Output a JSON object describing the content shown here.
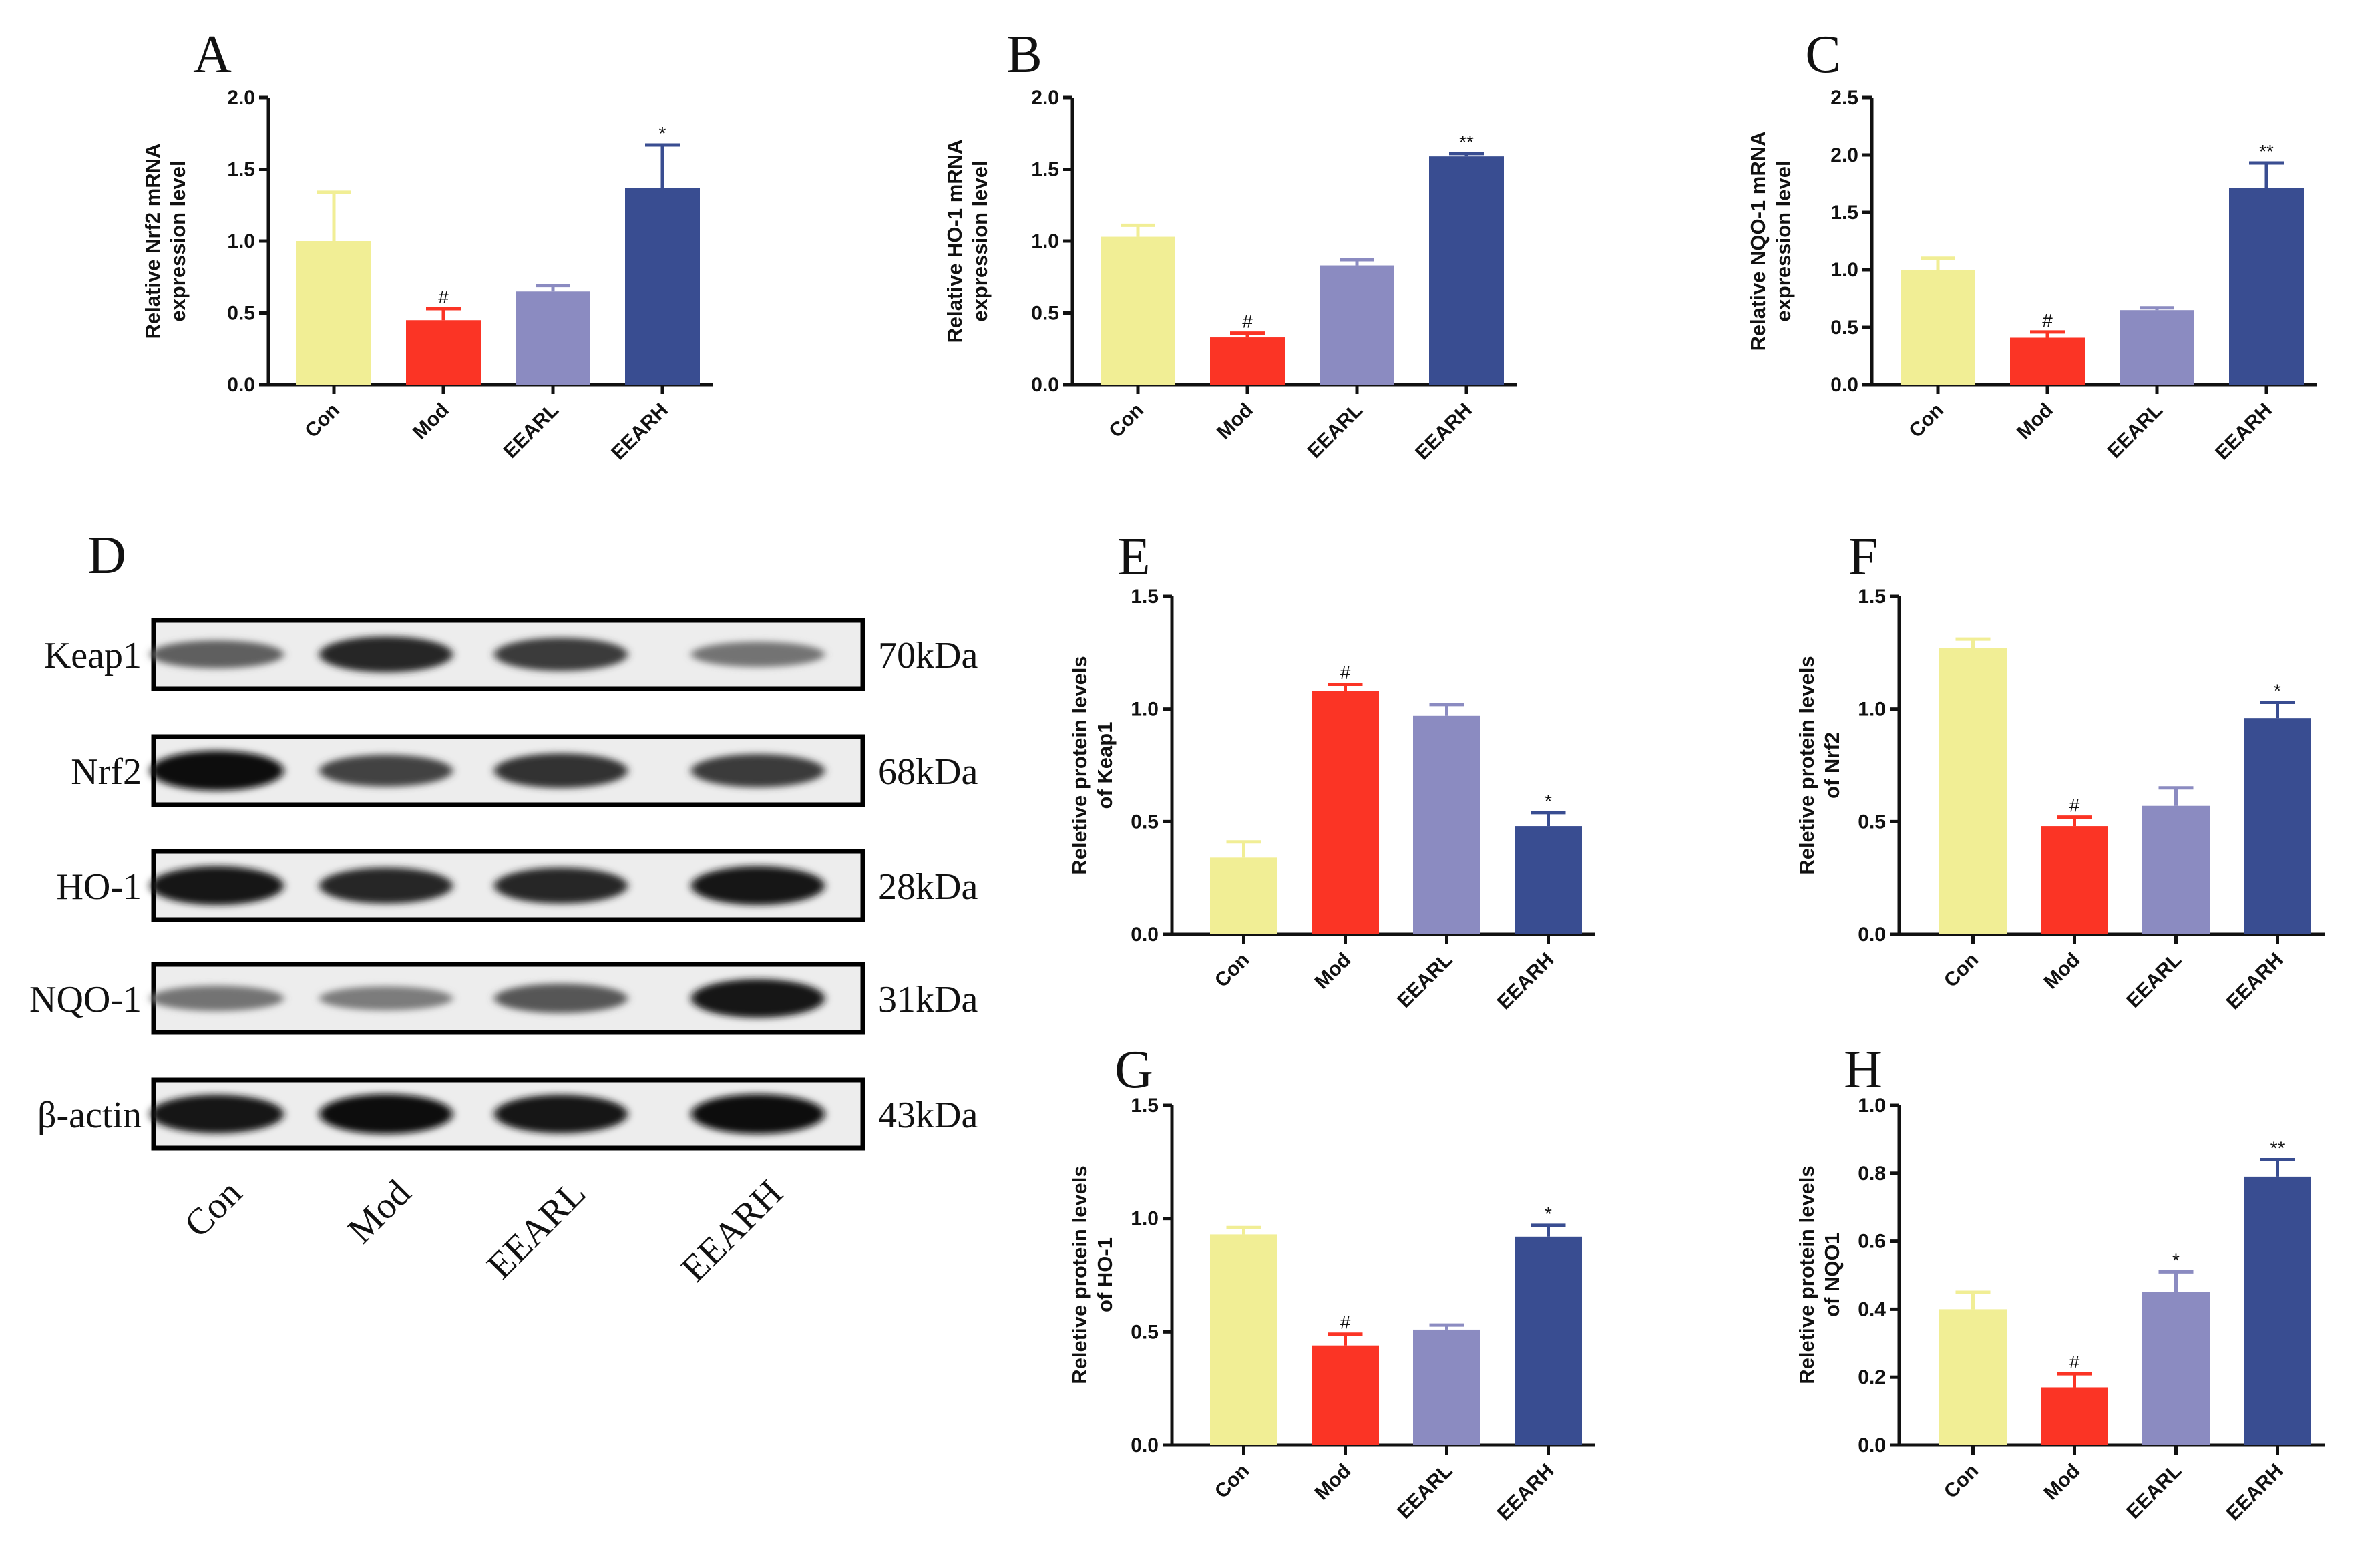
{
  "colors": [
    "#f1ee95",
    "#fb3425",
    "#8b8bc1",
    "#394d91"
  ],
  "chart_data": [
    {
      "panel": "A",
      "type": "bar",
      "categories": [
        "Con",
        "Mod",
        "EEARL",
        "EEARH"
      ],
      "values": [
        1.0,
        0.45,
        0.65,
        1.37
      ],
      "errors": [
        0.34,
        0.08,
        0.04,
        0.3
      ],
      "sig": [
        "",
        "#",
        "",
        "*"
      ],
      "ylabel": [
        "Relative Nrf2 mRNA",
        "expression level"
      ],
      "ylim": [
        0,
        2.0
      ],
      "yticks": [
        "0.0",
        "0.5",
        "1.0",
        "1.5",
        "2.0"
      ]
    },
    {
      "panel": "B",
      "type": "bar",
      "categories": [
        "Con",
        "Mod",
        "EEARL",
        "EEARH"
      ],
      "values": [
        1.03,
        0.33,
        0.83,
        1.59
      ],
      "errors": [
        0.08,
        0.03,
        0.04,
        0.02
      ],
      "sig": [
        "",
        "#",
        "",
        "**"
      ],
      "ylabel": [
        "Relative HO-1 mRNA",
        "expression level"
      ],
      "ylim": [
        0,
        2.0
      ],
      "yticks": [
        "0.0",
        "0.5",
        "1.0",
        "1.5",
        "2.0"
      ]
    },
    {
      "panel": "C",
      "type": "bar",
      "categories": [
        "Con",
        "Mod",
        "EEARL",
        "EEARH"
      ],
      "values": [
        1.0,
        0.41,
        0.65,
        1.71
      ],
      "errors": [
        0.1,
        0.05,
        0.02,
        0.22
      ],
      "sig": [
        "",
        "#",
        "",
        "**"
      ],
      "ylabel": [
        "Relative NQO-1 mRNA",
        "expression level"
      ],
      "ylim": [
        0,
        2.5
      ],
      "yticks": [
        "0.0",
        "0.5",
        "1.0",
        "1.5",
        "2.0",
        "2.5"
      ]
    },
    {
      "panel": "E",
      "type": "bar",
      "categories": [
        "Con",
        "Mod",
        "EEARL",
        "EEARH"
      ],
      "values": [
        0.34,
        1.08,
        0.97,
        0.48
      ],
      "errors": [
        0.07,
        0.03,
        0.05,
        0.06
      ],
      "sig": [
        "",
        "#",
        "",
        "*"
      ],
      "ylabel": [
        "Reletive protein levels",
        "of Keap1"
      ],
      "ylim": [
        0,
        1.5
      ],
      "yticks": [
        "0.0",
        "0.5",
        "1.0",
        "1.5"
      ]
    },
    {
      "panel": "F",
      "type": "bar",
      "categories": [
        "Con",
        "Mod",
        "EEARL",
        "EEARH"
      ],
      "values": [
        1.27,
        0.48,
        0.57,
        0.96
      ],
      "errors": [
        0.04,
        0.04,
        0.08,
        0.07
      ],
      "sig": [
        "",
        "#",
        "",
        "*"
      ],
      "ylabel": [
        "Reletive protein levels",
        "of Nrf2"
      ],
      "ylim": [
        0,
        1.5
      ],
      "yticks": [
        "0.0",
        "0.5",
        "1.0",
        "1.5"
      ]
    },
    {
      "panel": "G",
      "type": "bar",
      "categories": [
        "Con",
        "Mod",
        "EEARL",
        "EEARH"
      ],
      "values": [
        0.93,
        0.44,
        0.51,
        0.92
      ],
      "errors": [
        0.03,
        0.05,
        0.02,
        0.05
      ],
      "sig": [
        "",
        "#",
        "",
        "*"
      ],
      "ylabel": [
        "Reletive protein levels",
        "of HO-1"
      ],
      "ylim": [
        0,
        1.5
      ],
      "yticks": [
        "0.0",
        "0.5",
        "1.0",
        "1.5"
      ]
    },
    {
      "panel": "H",
      "type": "bar",
      "categories": [
        "Con",
        "Mod",
        "EEARL",
        "EEARH"
      ],
      "values": [
        0.4,
        0.17,
        0.45,
        0.79
      ],
      "errors": [
        0.05,
        0.04,
        0.06,
        0.05
      ],
      "sig": [
        "",
        "#",
        "*",
        "**"
      ],
      "ylabel": [
        "Reletive protein levels",
        "of NQO1"
      ],
      "ylim": [
        0,
        1.0
      ],
      "yticks": [
        "0.0",
        "0.2",
        "0.4",
        "0.6",
        "0.8",
        "1.0"
      ]
    }
  ],
  "western_blot": {
    "panel": "D",
    "proteins": [
      "Keap1",
      "Nrf2",
      "HO-1",
      "NQO-1",
      "β-actin"
    ],
    "weights": [
      "70kDa",
      "68kDa",
      "28kDa",
      "31kDa",
      "43kDa"
    ],
    "lanes": [
      "Con",
      "Mod",
      "EEARL",
      "EEARH"
    ],
    "band_intensity": [
      [
        0.55,
        0.85,
        0.75,
        0.45
      ],
      [
        1.0,
        0.7,
        0.8,
        0.75
      ],
      [
        0.95,
        0.85,
        0.85,
        0.95
      ],
      [
        0.45,
        0.4,
        0.6,
        0.95
      ],
      [
        0.95,
        1.0,
        0.95,
        1.0
      ]
    ]
  }
}
